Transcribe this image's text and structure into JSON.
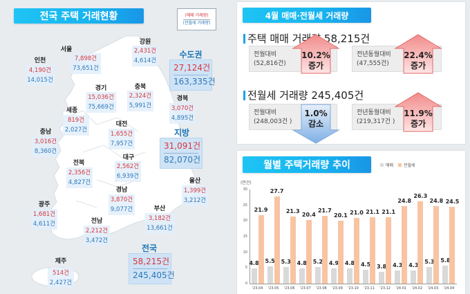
{
  "left": {
    "title": "전국 주택 거래현황",
    "legend": {
      "sale_label": "(매매 거래량)",
      "rent_label": "(전월세 거래량)",
      "sale_color": "#d9353a",
      "rent_color": "#2b78b8"
    },
    "regions": [
      {
        "name": "서울",
        "sale": "7,898건",
        "rent": "73,651건"
      },
      {
        "name": "인천",
        "sale": "4,190건",
        "rent": "14,015건"
      },
      {
        "name": "강원",
        "sale": "2,431건",
        "rent": "4,614건"
      },
      {
        "name": "경기",
        "sale": "15,036건",
        "rent": "75,669건"
      },
      {
        "name": "충북",
        "sale": "2,324건",
        "rent": "5,991건"
      },
      {
        "name": "경북",
        "sale": "3,070건",
        "rent": "4,895건"
      },
      {
        "name": "세종",
        "sale": "819건",
        "rent": "2,027건"
      },
      {
        "name": "충남",
        "sale": "3,016건",
        "rent": "8,360건"
      },
      {
        "name": "대전",
        "sale": "1,655건",
        "rent": "7,957건"
      },
      {
        "name": "대구",
        "sale": "2,562건",
        "rent": "6,939건"
      },
      {
        "name": "전북",
        "sale": "2,356건",
        "rent": "4,827건"
      },
      {
        "name": "울산",
        "sale": "1,399건",
        "rent": "3,212건"
      },
      {
        "name": "경남",
        "sale": "3,870건",
        "rent": "9,077건"
      },
      {
        "name": "광주",
        "sale": "1,681건",
        "rent": "4,611건"
      },
      {
        "name": "부산",
        "sale": "3,182건",
        "rent": "13,661건"
      },
      {
        "name": "전남",
        "sale": "2,212건",
        "rent": "3,472건"
      },
      {
        "name": "제주",
        "sale": "514건",
        "rent": "2,427건"
      }
    ],
    "summaries": {
      "capital": {
        "name": "수도권",
        "sale": "27,124건",
        "rent": "163,335건"
      },
      "local": {
        "name": "지방",
        "sale": "31,091건",
        "rent": "82,070건"
      },
      "national": {
        "name": "전국",
        "sale": "58,215건",
        "rent": "245,405건"
      }
    }
  },
  "monthly": {
    "title": "4월 매매·전월세 거래량",
    "sale": {
      "heading": "주택 매매 거래량 58,215건",
      "mom": {
        "label": "전월대비",
        "prev": "(52,816건)",
        "pct": "10.2%",
        "dir": "증가",
        "trend": "up"
      },
      "yoy": {
        "label": "전년동월대비",
        "prev": "(47,555건)",
        "pct": "22.4%",
        "dir": "증가",
        "trend": "up"
      }
    },
    "rent": {
      "heading": "전월세 거래량 245,405건",
      "mom": {
        "label": "전월대비",
        "prev": "(248,003건 )",
        "pct": "1.0%",
        "dir": "감소",
        "trend": "down"
      },
      "yoy": {
        "label": "전년동월대비",
        "prev": "(219,317건 )",
        "pct": "11.9%",
        "dir": "증가",
        "trend": "up"
      }
    }
  },
  "trend": {
    "title": "월별 주택거래량 추이",
    "legend": [
      {
        "label": "매매",
        "color": "#d9d9d9"
      },
      {
        "label": "전월세",
        "color": "#f8c4a2"
      }
    ],
    "unit": "(만건)"
  },
  "chart_data": {
    "type": "bar",
    "title": "월별 주택거래량 추이",
    "ylabel": "(만건)",
    "xlabel": "",
    "ylim": [
      0,
      30
    ],
    "yticks": [
      0,
      5,
      10,
      15,
      20,
      25,
      30
    ],
    "grid": false,
    "legend_position": "top-right",
    "categories": [
      "'23.04",
      "'23.05",
      "'23.06",
      "'23.07",
      "'23.08",
      "'23.09",
      "'23.10",
      "'23.11",
      "'23.12",
      "'24.01",
      "'24.02",
      "'24.03",
      "'24.04"
    ],
    "series": [
      {
        "name": "매매",
        "color": "#d9d9d9",
        "values": [
          4.8,
          5.5,
          5.3,
          4.8,
          5.2,
          4.9,
          4.8,
          4.5,
          3.8,
          4.3,
          4.3,
          5.3,
          5.8
        ]
      },
      {
        "name": "전월세",
        "color": "#f8c4a2",
        "values": [
          21.9,
          27.7,
          21.3,
          20.4,
          21.7,
          20.1,
          21.0,
          21.1,
          21.1,
          24.8,
          26.3,
          24.8,
          24.5
        ]
      }
    ]
  }
}
